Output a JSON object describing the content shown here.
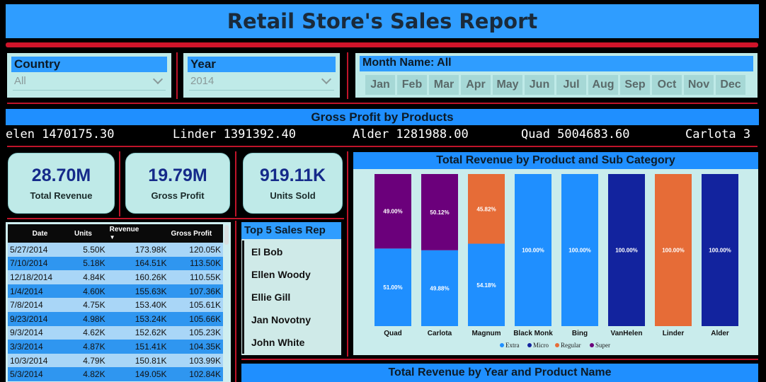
{
  "title": "Retail Store's Sales Report",
  "slicers": {
    "country": {
      "label": "Country",
      "value": "All"
    },
    "year": {
      "label": "Year",
      "value": "2014"
    },
    "month": {
      "label": "Month Name: All",
      "months": [
        "Jan",
        "Feb",
        "Mar",
        "Apr",
        "May",
        "Jun",
        "Jul",
        "Aug",
        "Sep",
        "Oct",
        "Nov",
        "Dec"
      ]
    }
  },
  "gross_profit_products": {
    "title": "Gross Profit by Products",
    "items": [
      "elen 1470175.30",
      "Linder 1391392.40",
      "Alder 1281988.00",
      "Quad 5004683.60",
      "Carlota 3"
    ]
  },
  "kpis": [
    {
      "value": "28.70M",
      "label": "Total Revenue"
    },
    {
      "value": "19.79M",
      "label": "Gross Profit"
    },
    {
      "value": "919.11K",
      "label": "Units Sold"
    }
  ],
  "table": {
    "columns": [
      "Date",
      "Units",
      "Revenue",
      "Gross Profit"
    ],
    "rows": [
      [
        "5/27/2014",
        "5.50K",
        "173.98K",
        "120.05K"
      ],
      [
        "7/10/2014",
        "5.18K",
        "164.51K",
        "113.50K"
      ],
      [
        "12/18/2014",
        "4.84K",
        "160.26K",
        "110.55K"
      ],
      [
        "1/4/2014",
        "4.60K",
        "155.63K",
        "107.36K"
      ],
      [
        "7/8/2014",
        "4.75K",
        "153.40K",
        "105.61K"
      ],
      [
        "9/23/2014",
        "4.98K",
        "153.24K",
        "105.66K"
      ],
      [
        "9/3/2014",
        "4.62K",
        "152.62K",
        "105.23K"
      ],
      [
        "3/3/2014",
        "4.87K",
        "151.41K",
        "104.35K"
      ],
      [
        "10/3/2014",
        "4.79K",
        "150.81K",
        "103.99K"
      ],
      [
        "5/3/2014",
        "4.82K",
        "149.05K",
        "102.84K"
      ]
    ]
  },
  "top_reps": {
    "title": "Top 5 Sales Rep",
    "names": [
      "El Bob",
      "Ellen Woody",
      "Ellie Gill",
      "Jan Novotny",
      "John White"
    ]
  },
  "chart_data": {
    "type": "bar",
    "stacked": "100%",
    "title": "Total Revenue by Product and Sub Category",
    "categories": [
      "Quad",
      "Carlota",
      "Magnum",
      "Black Monk",
      "Bing",
      "VanHelen",
      "Linder",
      "Alder"
    ],
    "series": [
      {
        "name": "Extra",
        "color": "#1f8fff",
        "values": [
          51.0,
          49.88,
          54.18,
          100.0,
          100.0,
          0,
          0,
          0
        ]
      },
      {
        "name": "Micro",
        "color": "#12239e",
        "values": [
          0,
          0,
          0,
          0,
          0,
          100.0,
          0,
          100.0
        ]
      },
      {
        "name": "Regular",
        "color": "#e66c37",
        "values": [
          0,
          0,
          45.82,
          0,
          0,
          0,
          100.0,
          0
        ]
      },
      {
        "name": "Super",
        "color": "#6b007b",
        "values": [
          49.0,
          50.12,
          0,
          0,
          0,
          0,
          0,
          0
        ]
      }
    ],
    "labels": [
      [
        {
          "series": "Super",
          "text": "49.00%"
        },
        {
          "series": "Extra",
          "text": "51.00%"
        }
      ],
      [
        {
          "series": "Super",
          "text": "50.12%"
        },
        {
          "series": "Extra",
          "text": "49.88%"
        }
      ],
      [
        {
          "series": "Regular",
          "text": "45.82%"
        },
        {
          "series": "Extra",
          "text": "54.18%"
        }
      ],
      [
        {
          "series": "Extra",
          "text": "100.00%"
        }
      ],
      [
        {
          "series": "Extra",
          "text": "100.00%"
        }
      ],
      [
        {
          "series": "Micro",
          "text": "100.00%"
        }
      ],
      [
        {
          "series": "Regular",
          "text": "100.00%"
        }
      ],
      [
        {
          "series": "Micro",
          "text": "100.00%"
        }
      ]
    ],
    "legend_position": "bottom"
  },
  "bottom_chart": {
    "title": "Total Revenue by Year and Product Name"
  }
}
